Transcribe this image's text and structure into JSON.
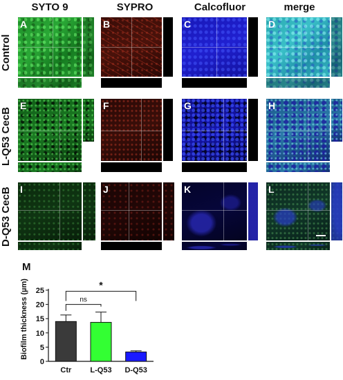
{
  "figure": {
    "columns": [
      "SYTO 9",
      "SYPRO",
      "Calcofluor",
      "merge"
    ],
    "rows": [
      "Control",
      "L-Q53 CecB",
      "D-Q53 CecB"
    ],
    "panels": [
      [
        "A",
        "B",
        "C",
        "D"
      ],
      [
        "E",
        "F",
        "G",
        "H"
      ],
      [
        "I",
        "J",
        "K",
        "L"
      ]
    ]
  },
  "chart_label": "M",
  "chart_data": {
    "type": "bar",
    "categories": [
      "Ctr",
      "L-Q53",
      "D-Q53"
    ],
    "values": [
      14.0,
      13.7,
      3.3
    ],
    "errors": [
      2.3,
      3.6,
      0.4
    ],
    "colors": [
      "#3a3a3a",
      "#33ff33",
      "#1a1aff"
    ],
    "ylabel": "Biofilm thickness (µm)",
    "ylim": [
      0,
      25
    ],
    "yticks": [
      0,
      5,
      10,
      15,
      20,
      25
    ],
    "annotations": [
      {
        "between": [
          "Ctr",
          "L-Q53"
        ],
        "text": "ns"
      },
      {
        "between": [
          "Ctr",
          "D-Q53"
        ],
        "text": "*"
      }
    ]
  }
}
